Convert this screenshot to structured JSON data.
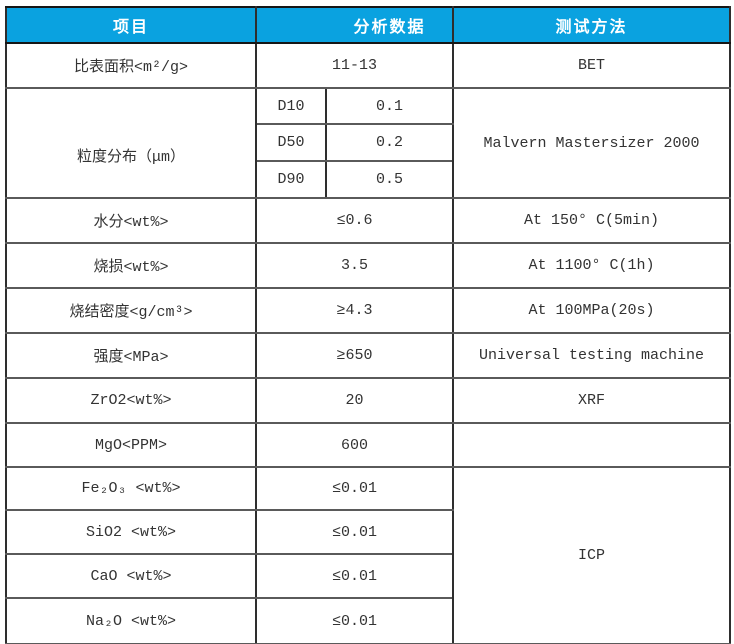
{
  "colors": {
    "header_bg": "#0aa2e0",
    "header_text": "#ffffff",
    "body_text": "#333333",
    "grid_line_horizontal": "#5a5a5a",
    "grid_line_vertical": "#2e2e2e",
    "outer_border": "#0d0d0d"
  },
  "header": {
    "item": "项目",
    "data": "分析数据",
    "method": "测试方法"
  },
  "rows": {
    "surface_area": {
      "item": "比表面积<m²/g>",
      "value": "11-13",
      "method": "BET"
    },
    "psd": {
      "item": "粒度分布（μm）",
      "method": "Malvern Mastersizer 2000",
      "d10_label": "D10",
      "d10_value": "0.1",
      "d50_label": "D50",
      "d50_value": "0.2",
      "d90_label": "D90",
      "d90_value": "0.5"
    },
    "moisture": {
      "item": "水分<wt%>",
      "value": "≤0.6",
      "method": "At 150° C(5min)"
    },
    "loi": {
      "item": "烧损<wt%>",
      "value": "3.5",
      "method": "At 1100° C(1h)"
    },
    "density": {
      "item": "烧结密度<g/cm³>",
      "value": "≥4.3",
      "method": "At 100MPa(20s)"
    },
    "strength": {
      "item": "强度<MPa>",
      "value": "≥650",
      "method": "Universal testing machine"
    },
    "zro2": {
      "item": "ZrO2<wt%>",
      "value": "20",
      "method": "XRF"
    },
    "mgo": {
      "item": "MgO<PPM>",
      "value": "600",
      "method": ""
    },
    "fe2o3": {
      "item": "Fe₂O₃ <wt%>",
      "value": "≤0.01",
      "method": "ICP"
    },
    "sio2": {
      "item": "SiO2 <wt%>",
      "value": "≤0.01"
    },
    "cao": {
      "item": "CaO <wt%>",
      "value": "≤0.01"
    },
    "na2o": {
      "item": "Na₂O <wt%>",
      "value": "≤0.01"
    }
  }
}
